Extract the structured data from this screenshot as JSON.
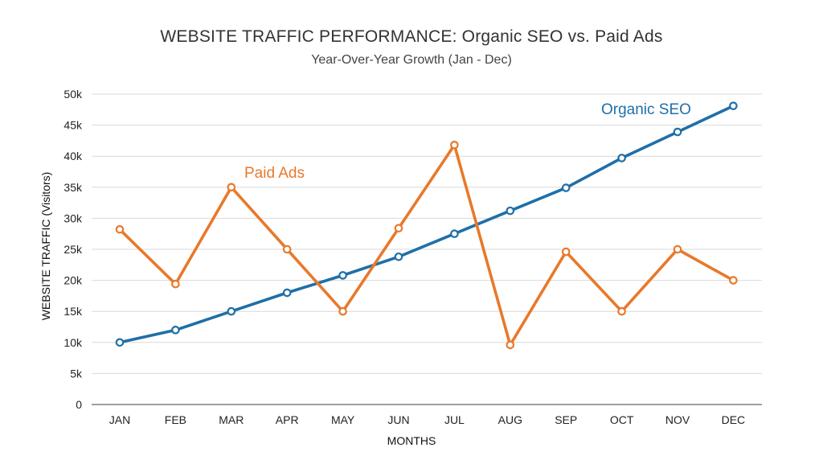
{
  "chart_data": {
    "type": "line",
    "title": "WEBSITE TRAFFIC PERFORMANCE: Organic SEO vs. Paid Ads",
    "subtitle": "Year-Over-Year Growth (Jan - Dec)",
    "xlabel": "MONTHS",
    "ylabel": "WEBSITE TRAFFIC (Visitors)",
    "categories": [
      "JAN",
      "FEB",
      "MAR",
      "APR",
      "MAY",
      "JUN",
      "JUL",
      "AUG",
      "SEP",
      "OCT",
      "NOV",
      "DEC"
    ],
    "ylim": [
      0,
      50000
    ],
    "yticks": [
      0,
      5000,
      10000,
      15000,
      20000,
      25000,
      30000,
      35000,
      40000,
      45000,
      50000
    ],
    "ytick_labels": [
      "0",
      "5k",
      "10k",
      "15k",
      "20k",
      "25k",
      "30k",
      "35k",
      "40k",
      "45k",
      "50k"
    ],
    "grid": true,
    "legend": "inline labels",
    "series": [
      {
        "name": "Organic SEO",
        "color": "#1f6fa8",
        "values": [
          10000,
          12000,
          15000,
          18000,
          20800,
          23800,
          27500,
          31200,
          34900,
          39700,
          43900,
          48100
        ]
      },
      {
        "name": "Paid Ads",
        "color": "#e8792b",
        "values": [
          28200,
          19400,
          35000,
          25000,
          15000,
          28400,
          41800,
          9600,
          24600,
          15000,
          25000,
          20000
        ]
      }
    ]
  }
}
